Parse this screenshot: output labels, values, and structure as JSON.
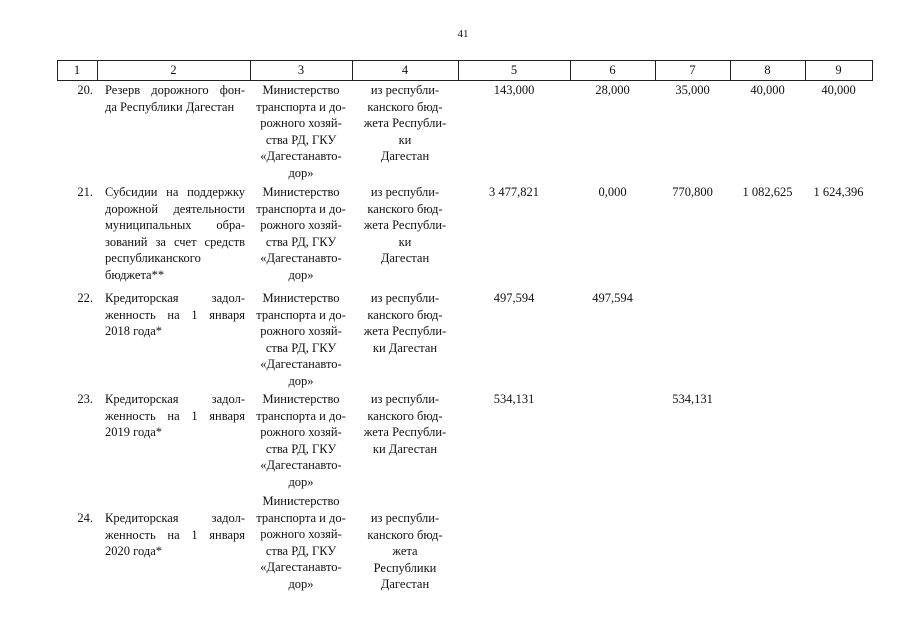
{
  "page_number": "41",
  "table": {
    "header": [
      "1",
      "2",
      "3",
      "4",
      "5",
      "6",
      "7",
      "8",
      "9"
    ],
    "rows": [
      [
        [
          "20."
        ],
        [
          "Резерв дорожного фон-",
          "да Республики Дагестан"
        ],
        [
          "Министерство",
          "транспорта и до-",
          "рожного хозяй-",
          "ства РД, ГКУ",
          "«Дагестанавто-",
          "дор»"
        ],
        [
          "из республи-",
          "канского бюд-",
          "жета Республи-",
          "ки",
          "Дагестан"
        ],
        [
          "143,000"
        ],
        [
          "28,000"
        ],
        [
          "35,000"
        ],
        [
          "40,000"
        ],
        [
          "40,000"
        ]
      ],
      [
        [
          "21."
        ],
        [
          "Субсидии на поддержку",
          "дорожной деятельности",
          "муниципальных обра-",
          "зований за счет средств",
          "республиканского",
          "бюджета**"
        ],
        [
          "Министерство",
          "транспорта и до-",
          "рожного хозяй-",
          "ства РД, ГКУ",
          "«Дагестанавто-",
          "дор»"
        ],
        [
          "из республи-",
          "канского бюд-",
          "жета Республи-",
          "ки",
          "Дагестан"
        ],
        [
          "3 477,821"
        ],
        [
          "0,000"
        ],
        [
          "770,800"
        ],
        [
          "1 082,625"
        ],
        [
          "1 624,396"
        ]
      ],
      [
        [
          "22."
        ],
        [
          "Кредиторская задол-",
          "женность на 1 января",
          "2018 года*"
        ],
        [
          "Министерство",
          "транспорта и до-",
          "рожного хозяй-",
          "ства РД, ГКУ",
          "«Дагестанавто-",
          "дор»"
        ],
        [
          "из республи-",
          "канского бюд-",
          "жета Республи-",
          "ки Дагестан"
        ],
        [
          "497,594"
        ],
        [
          "497,594"
        ],
        [],
        [],
        []
      ],
      [
        [
          "23."
        ],
        [
          "Кредиторская задол-",
          "женность на 1 января",
          "2019 года*"
        ],
        [
          "Министерство",
          "транспорта и до-",
          "рожного хозяй-",
          "ства РД, ГКУ",
          "«Дагестанавто-",
          "дор»"
        ],
        [
          "из республи-",
          "канского бюд-",
          "жета Республи-",
          "ки Дагестан"
        ],
        [
          "534,131"
        ],
        [],
        [
          "534,131"
        ],
        [],
        []
      ],
      [
        [
          "24."
        ],
        [
          "Кредиторская задол-",
          "женность на 1 января",
          "2020 года*"
        ],
        [
          "Министерство",
          "транспорта и до-",
          "рожного хозяй-",
          "ства РД, ГКУ",
          "«Дагестанавто-",
          "дор»"
        ],
        [
          "из республи-",
          "канского бюд-",
          "жета",
          "Республики",
          "Дагестан"
        ],
        [],
        [],
        [],
        [],
        []
      ]
    ]
  }
}
